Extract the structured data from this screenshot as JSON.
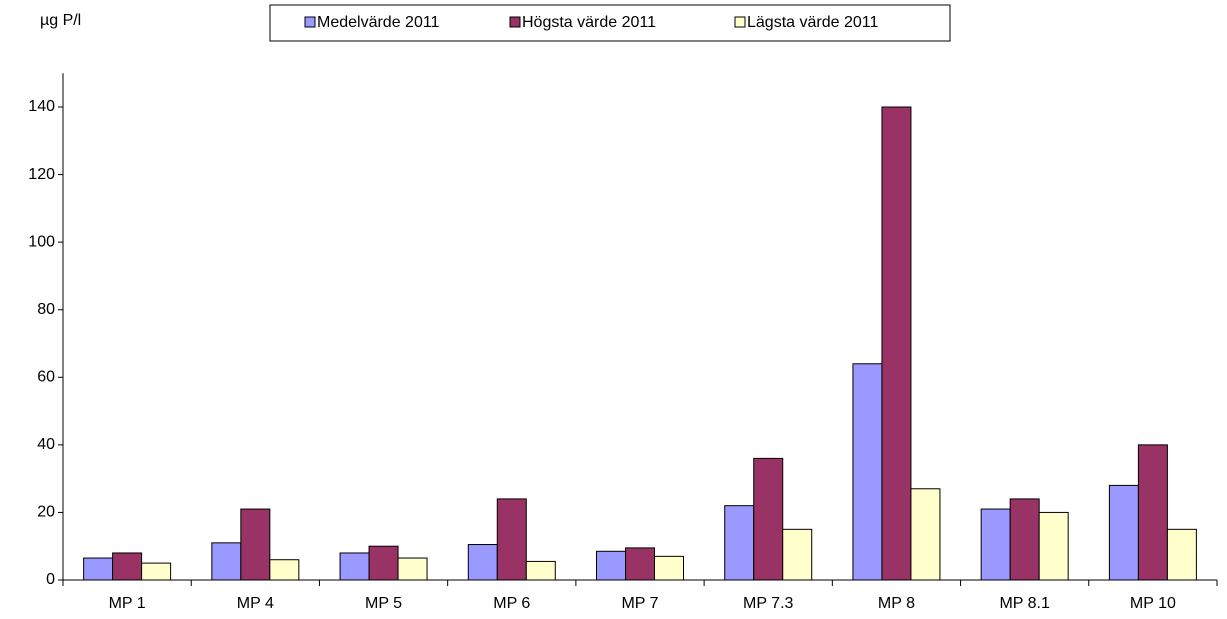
{
  "chart_data": {
    "type": "bar",
    "y_label": "µg P/l",
    "categories": [
      "MP 1",
      "MP 4",
      "MP 5",
      "MP 6",
      "MP 7",
      "MP 7.3",
      "MP 8",
      "MP 8.1",
      "MP 10"
    ],
    "series": [
      {
        "name": "Medelvärde 2011",
        "color": "#9999ff",
        "values": [
          6.5,
          11,
          8,
          10.5,
          8.5,
          22,
          64,
          21,
          28
        ]
      },
      {
        "name": "Högsta värde 2011",
        "color": "#993366",
        "values": [
          8,
          21,
          10,
          24,
          9.5,
          36,
          140,
          24,
          40
        ]
      },
      {
        "name": "Lägsta värde 2011",
        "color": "#ffffcc",
        "values": [
          5,
          6,
          6.5,
          5.5,
          7,
          15,
          27,
          20,
          15
        ]
      }
    ],
    "ylim": [
      0,
      150
    ],
    "yticks": [
      0,
      20,
      40,
      60,
      80,
      100,
      120,
      140
    ]
  }
}
